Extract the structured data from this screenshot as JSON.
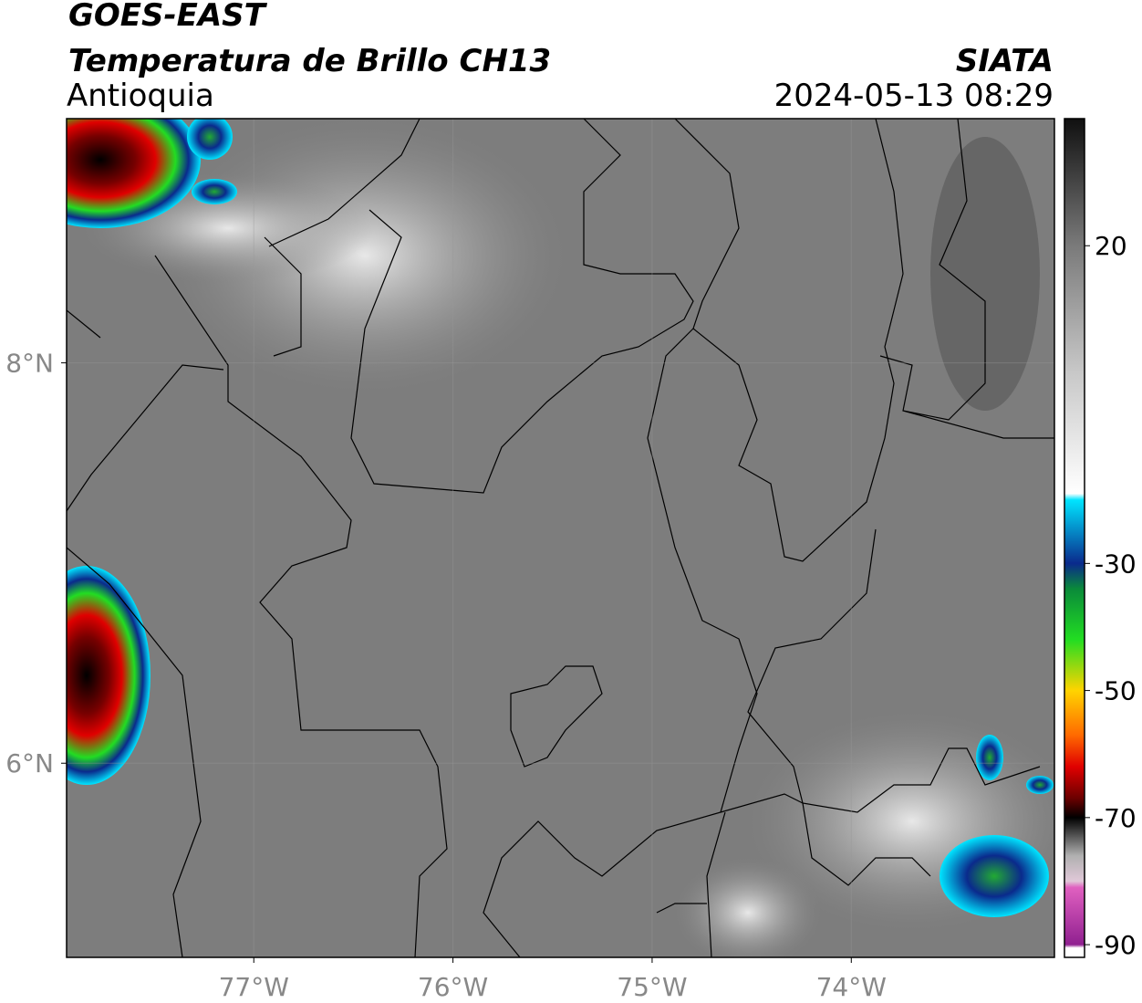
{
  "header": {
    "source": "GOES-EAST",
    "product": "Temperatura de Brillo CH13",
    "region": "Antioquia",
    "organization": "SIATA",
    "datetime": "2024-05-13 08:29"
  },
  "map": {
    "lon_range": [
      -77.94,
      -72.98
    ],
    "lat_range": [
      5.03,
      9.22
    ],
    "lon_ticks": [
      {
        "value": -77,
        "label": "77°W"
      },
      {
        "value": -76,
        "label": "76°W"
      },
      {
        "value": -75,
        "label": "75°W"
      },
      {
        "value": -74,
        "label": "74°W"
      }
    ],
    "lat_ticks": [
      {
        "value": 8,
        "label": "8°N"
      },
      {
        "value": 6,
        "label": "6°N"
      }
    ],
    "grid": true
  },
  "colorbar": {
    "range": [
      -92,
      40
    ],
    "ticks": [
      20,
      -30,
      -50,
      -70,
      -90
    ],
    "colormap": [
      {
        "value": 40,
        "color": "#101010"
      },
      {
        "value": 20,
        "color": "#7a7a7a"
      },
      {
        "value": 0,
        "color": "#c8c8c8"
      },
      {
        "value": -19,
        "color": "#ffffff"
      },
      {
        "value": -20,
        "color": "#00e5ff"
      },
      {
        "value": -30,
        "color": "#0a2a8c"
      },
      {
        "value": -34,
        "color": "#0a8a3a"
      },
      {
        "value": -42,
        "color": "#22dd22"
      },
      {
        "value": -50,
        "color": "#ffd400"
      },
      {
        "value": -57,
        "color": "#ff6a00"
      },
      {
        "value": -62,
        "color": "#e00000"
      },
      {
        "value": -67,
        "color": "#6a0000"
      },
      {
        "value": -70,
        "color": "#000000"
      },
      {
        "value": -76,
        "color": "#b0b0b0"
      },
      {
        "value": -80,
        "color": "#e0c8d8"
      },
      {
        "value": -81,
        "color": "#e060c0"
      },
      {
        "value": -90,
        "color": "#902090"
      },
      {
        "value": -90.5,
        "color": "#ffffff"
      },
      {
        "value": -92,
        "color": "#ffffff"
      }
    ]
  }
}
